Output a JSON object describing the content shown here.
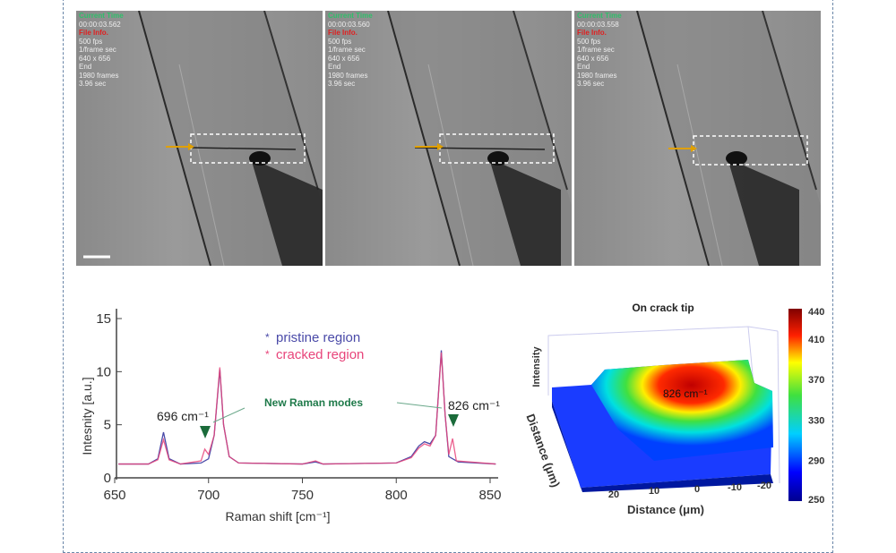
{
  "frames": [
    {
      "current_time_label": "Current Time",
      "time": "00:00:03.562",
      "file_info_label": "File Info.",
      "fps": "500 fps",
      "frame_sec": "1/frame sec",
      "resolution": "640 x 656",
      "end": "End",
      "frames": "1980 frames",
      "duration": "3.96 sec"
    },
    {
      "current_time_label": "Current Time",
      "time": "00:00:03.560",
      "file_info_label": "File Info.",
      "fps": "500 fps",
      "frame_sec": "1/frame sec",
      "resolution": "640 x 656",
      "end": "End",
      "frames": "1980 frames",
      "duration": "3.96 sec"
    },
    {
      "current_time_label": "Current Time",
      "time": "00:00:03.558",
      "file_info_label": "File Info.",
      "fps": "500 fps",
      "frame_sec": "1/frame sec",
      "resolution": "640 x 656",
      "end": "End",
      "frames": "1980 frames",
      "duration": "3.96 sec"
    }
  ],
  "chart_data": [
    {
      "type": "line",
      "xlabel": "Raman shift [cm⁻¹]",
      "ylabel": "Intesnity [a.u.]",
      "xlim": [
        650,
        855
      ],
      "ylim": [
        0,
        16
      ],
      "xticks": [
        "650",
        "700",
        "750",
        "800",
        "850"
      ],
      "yticks": [
        "0",
        "5",
        "10",
        "15"
      ],
      "legend_position": "top-center",
      "annotations": {
        "left_peak": "696 cm⁻¹",
        "right_peak": "826 cm⁻¹",
        "new_modes": "New Raman modes"
      },
      "series": [
        {
          "name": "pristine region",
          "color": "#4a4aa8",
          "points": [
            [
              652,
              1.3
            ],
            [
              668,
              1.3
            ],
            [
              673,
              1.8
            ],
            [
              676,
              4.3
            ],
            [
              679,
              1.8
            ],
            [
              685,
              1.3
            ],
            [
              696,
              1.4
            ],
            [
              700,
              1.8
            ],
            [
              703,
              4
            ],
            [
              706,
              10.2
            ],
            [
              708,
              5
            ],
            [
              711,
              2
            ],
            [
              716,
              1.4
            ],
            [
              750,
              1.3
            ],
            [
              757,
              1.5
            ],
            [
              761,
              1.3
            ],
            [
              800,
              1.4
            ],
            [
              808,
              2
            ],
            [
              812,
              3
            ],
            [
              815,
              3.4
            ],
            [
              818,
              3.2
            ],
            [
              821,
              4
            ],
            [
              824,
              12
            ],
            [
              826,
              6
            ],
            [
              828,
              2
            ],
            [
              833,
              1.5
            ],
            [
              853,
              1.3
            ]
          ]
        },
        {
          "name": "cracked region",
          "color": "#e8447a",
          "points": [
            [
              652,
              1.3
            ],
            [
              668,
              1.3
            ],
            [
              673,
              1.7
            ],
            [
              676,
              3.6
            ],
            [
              679,
              1.7
            ],
            [
              685,
              1.3
            ],
            [
              696,
              1.6
            ],
            [
              698,
              2.7
            ],
            [
              700,
              2.2
            ],
            [
              703,
              4
            ],
            [
              706,
              10.4
            ],
            [
              708,
              5
            ],
            [
              711,
              2
            ],
            [
              716,
              1.4
            ],
            [
              750,
              1.3
            ],
            [
              757,
              1.6
            ],
            [
              761,
              1.3
            ],
            [
              800,
              1.4
            ],
            [
              808,
              1.9
            ],
            [
              812,
              2.8
            ],
            [
              815,
              3.2
            ],
            [
              818,
              3.0
            ],
            [
              821,
              4
            ],
            [
              824,
              11.8
            ],
            [
              826,
              6
            ],
            [
              828,
              2.2
            ],
            [
              830,
              3.7
            ],
            [
              832,
              1.6
            ],
            [
              853,
              1.3
            ]
          ]
        }
      ]
    },
    {
      "type": "surface",
      "title": "On crack tip",
      "zlabel": "Intensity",
      "xlabel": "Distance (μm)",
      "ylabel": "Distance (μm)",
      "xticks": [
        "20",
        "10",
        "0",
        "-10",
        "-20"
      ],
      "annotation": "826 cm⁻¹",
      "colorbar": {
        "range": [
          250,
          440
        ],
        "ticks": [
          "440",
          "410",
          "370",
          "330",
          "290",
          "250"
        ],
        "colormap": "jet"
      }
    }
  ]
}
